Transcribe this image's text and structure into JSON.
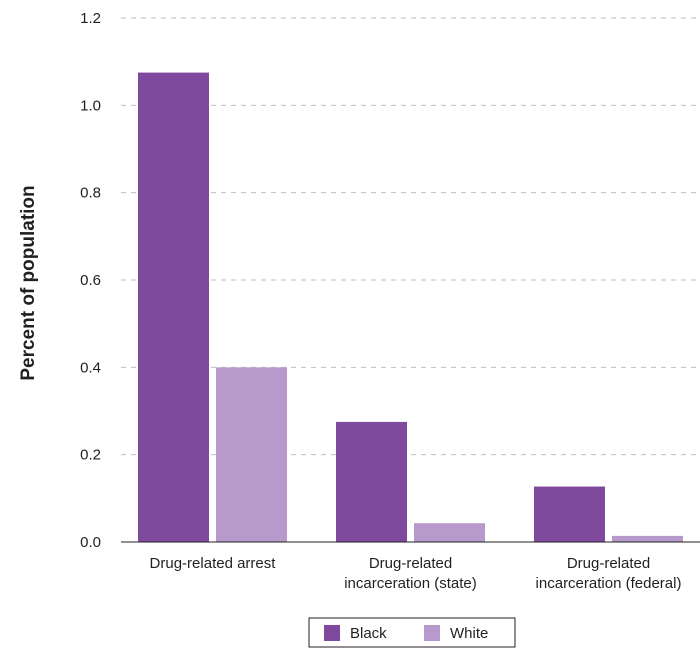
{
  "chart_data": {
    "type": "bar",
    "ylabel": "Percent of population",
    "xlabel": "",
    "ylim": [
      0,
      1.2
    ],
    "yticks": [
      "0.0",
      "0.2",
      "0.4",
      "0.6",
      "0.8",
      "1.0",
      "1.2"
    ],
    "grid": true,
    "legend_position": "bottom",
    "categories": [
      [
        "Drug-related arrest"
      ],
      [
        "Drug-related",
        "incarceration (state)"
      ],
      [
        "Drug-related",
        "incarceration (federal)"
      ]
    ],
    "series": [
      {
        "name": "Black",
        "color": "#7f4a9e",
        "values": [
          1.075,
          0.275,
          0.127
        ]
      },
      {
        "name": "White",
        "color": "#b799cb",
        "values": [
          0.4,
          0.043,
          0.014
        ]
      }
    ]
  }
}
